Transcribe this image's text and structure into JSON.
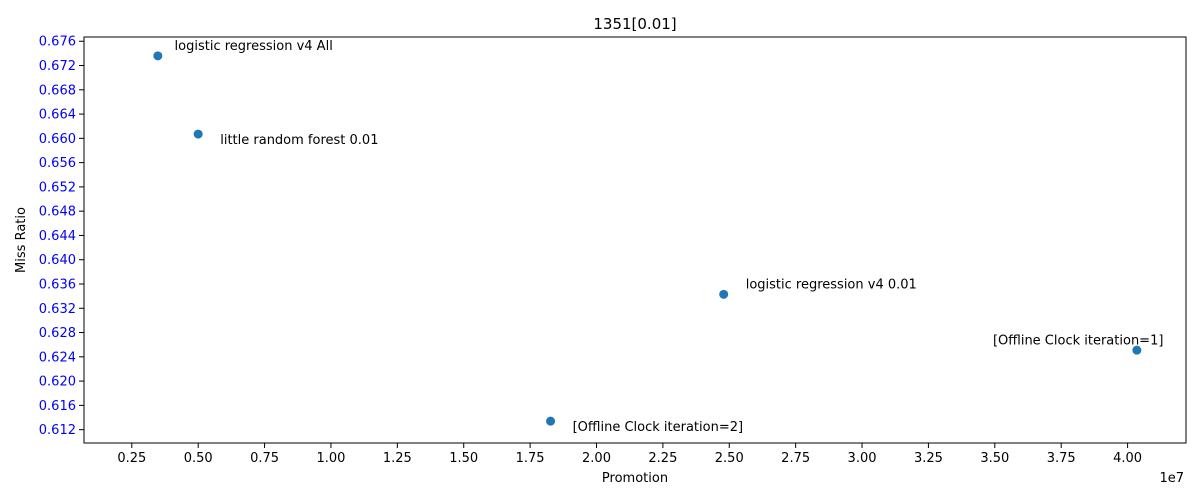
{
  "chart_data": {
    "type": "scatter",
    "title": "1351[0.01]",
    "xlabel": "Promotion",
    "ylabel": "Miss Ratio",
    "x_offset_label": "1e7",
    "xlim": [
      0.07,
      4.22
    ],
    "ylim": [
      0.6098,
      0.6767
    ],
    "xticks": [
      0.25,
      0.5,
      0.75,
      1.0,
      1.25,
      1.5,
      1.75,
      2.0,
      2.25,
      2.5,
      2.75,
      3.0,
      3.25,
      3.5,
      3.75,
      4.0
    ],
    "xtick_labels": [
      "0.25",
      "0.50",
      "0.75",
      "1.00",
      "1.25",
      "1.50",
      "1.75",
      "2.00",
      "2.25",
      "2.50",
      "2.75",
      "3.00",
      "3.25",
      "3.50",
      "3.75",
      "4.00"
    ],
    "yticks": [
      0.612,
      0.616,
      0.62,
      0.624,
      0.628,
      0.632,
      0.636,
      0.64,
      0.644,
      0.648,
      0.652,
      0.656,
      0.66,
      0.664,
      0.668,
      0.672,
      0.676
    ],
    "ytick_labels": [
      "0.612",
      "0.616",
      "0.620",
      "0.624",
      "0.628",
      "0.632",
      "0.636",
      "0.640",
      "0.644",
      "0.648",
      "0.652",
      "0.656",
      "0.660",
      "0.664",
      "0.668",
      "0.672",
      "0.676"
    ],
    "grid": false,
    "legend": "none",
    "points": [
      {
        "x": 0.348,
        "y": 0.6736,
        "label": "logistic regression v4 All",
        "label_anchor": "start",
        "label_dx": 0.063,
        "label_dy": 0.0017
      },
      {
        "x": 0.5,
        "y": 0.6607,
        "label": "little random forest 0.01",
        "label_anchor": "start",
        "label_dx": 0.083,
        "label_dy": -0.0009
      },
      {
        "x": 2.479,
        "y": 0.6343,
        "label": "logistic regression v4 0.01",
        "label_anchor": "start",
        "label_dx": 0.083,
        "label_dy": 0.0017
      },
      {
        "x": 4.035,
        "y": 0.6251,
        "label": "[Offline Clock iteration=1]",
        "label_anchor": "end",
        "label_dx": 0.1,
        "label_dy": 0.0017
      },
      {
        "x": 1.827,
        "y": 0.6134,
        "label": "[Offline Clock iteration=2]",
        "label_anchor": "start",
        "label_dx": 0.083,
        "label_dy": -0.0009
      }
    ],
    "colors": {
      "marker": "#1f77b4",
      "ytick_text": "#0000ff",
      "text": "#000000",
      "axis": "#000000"
    }
  }
}
